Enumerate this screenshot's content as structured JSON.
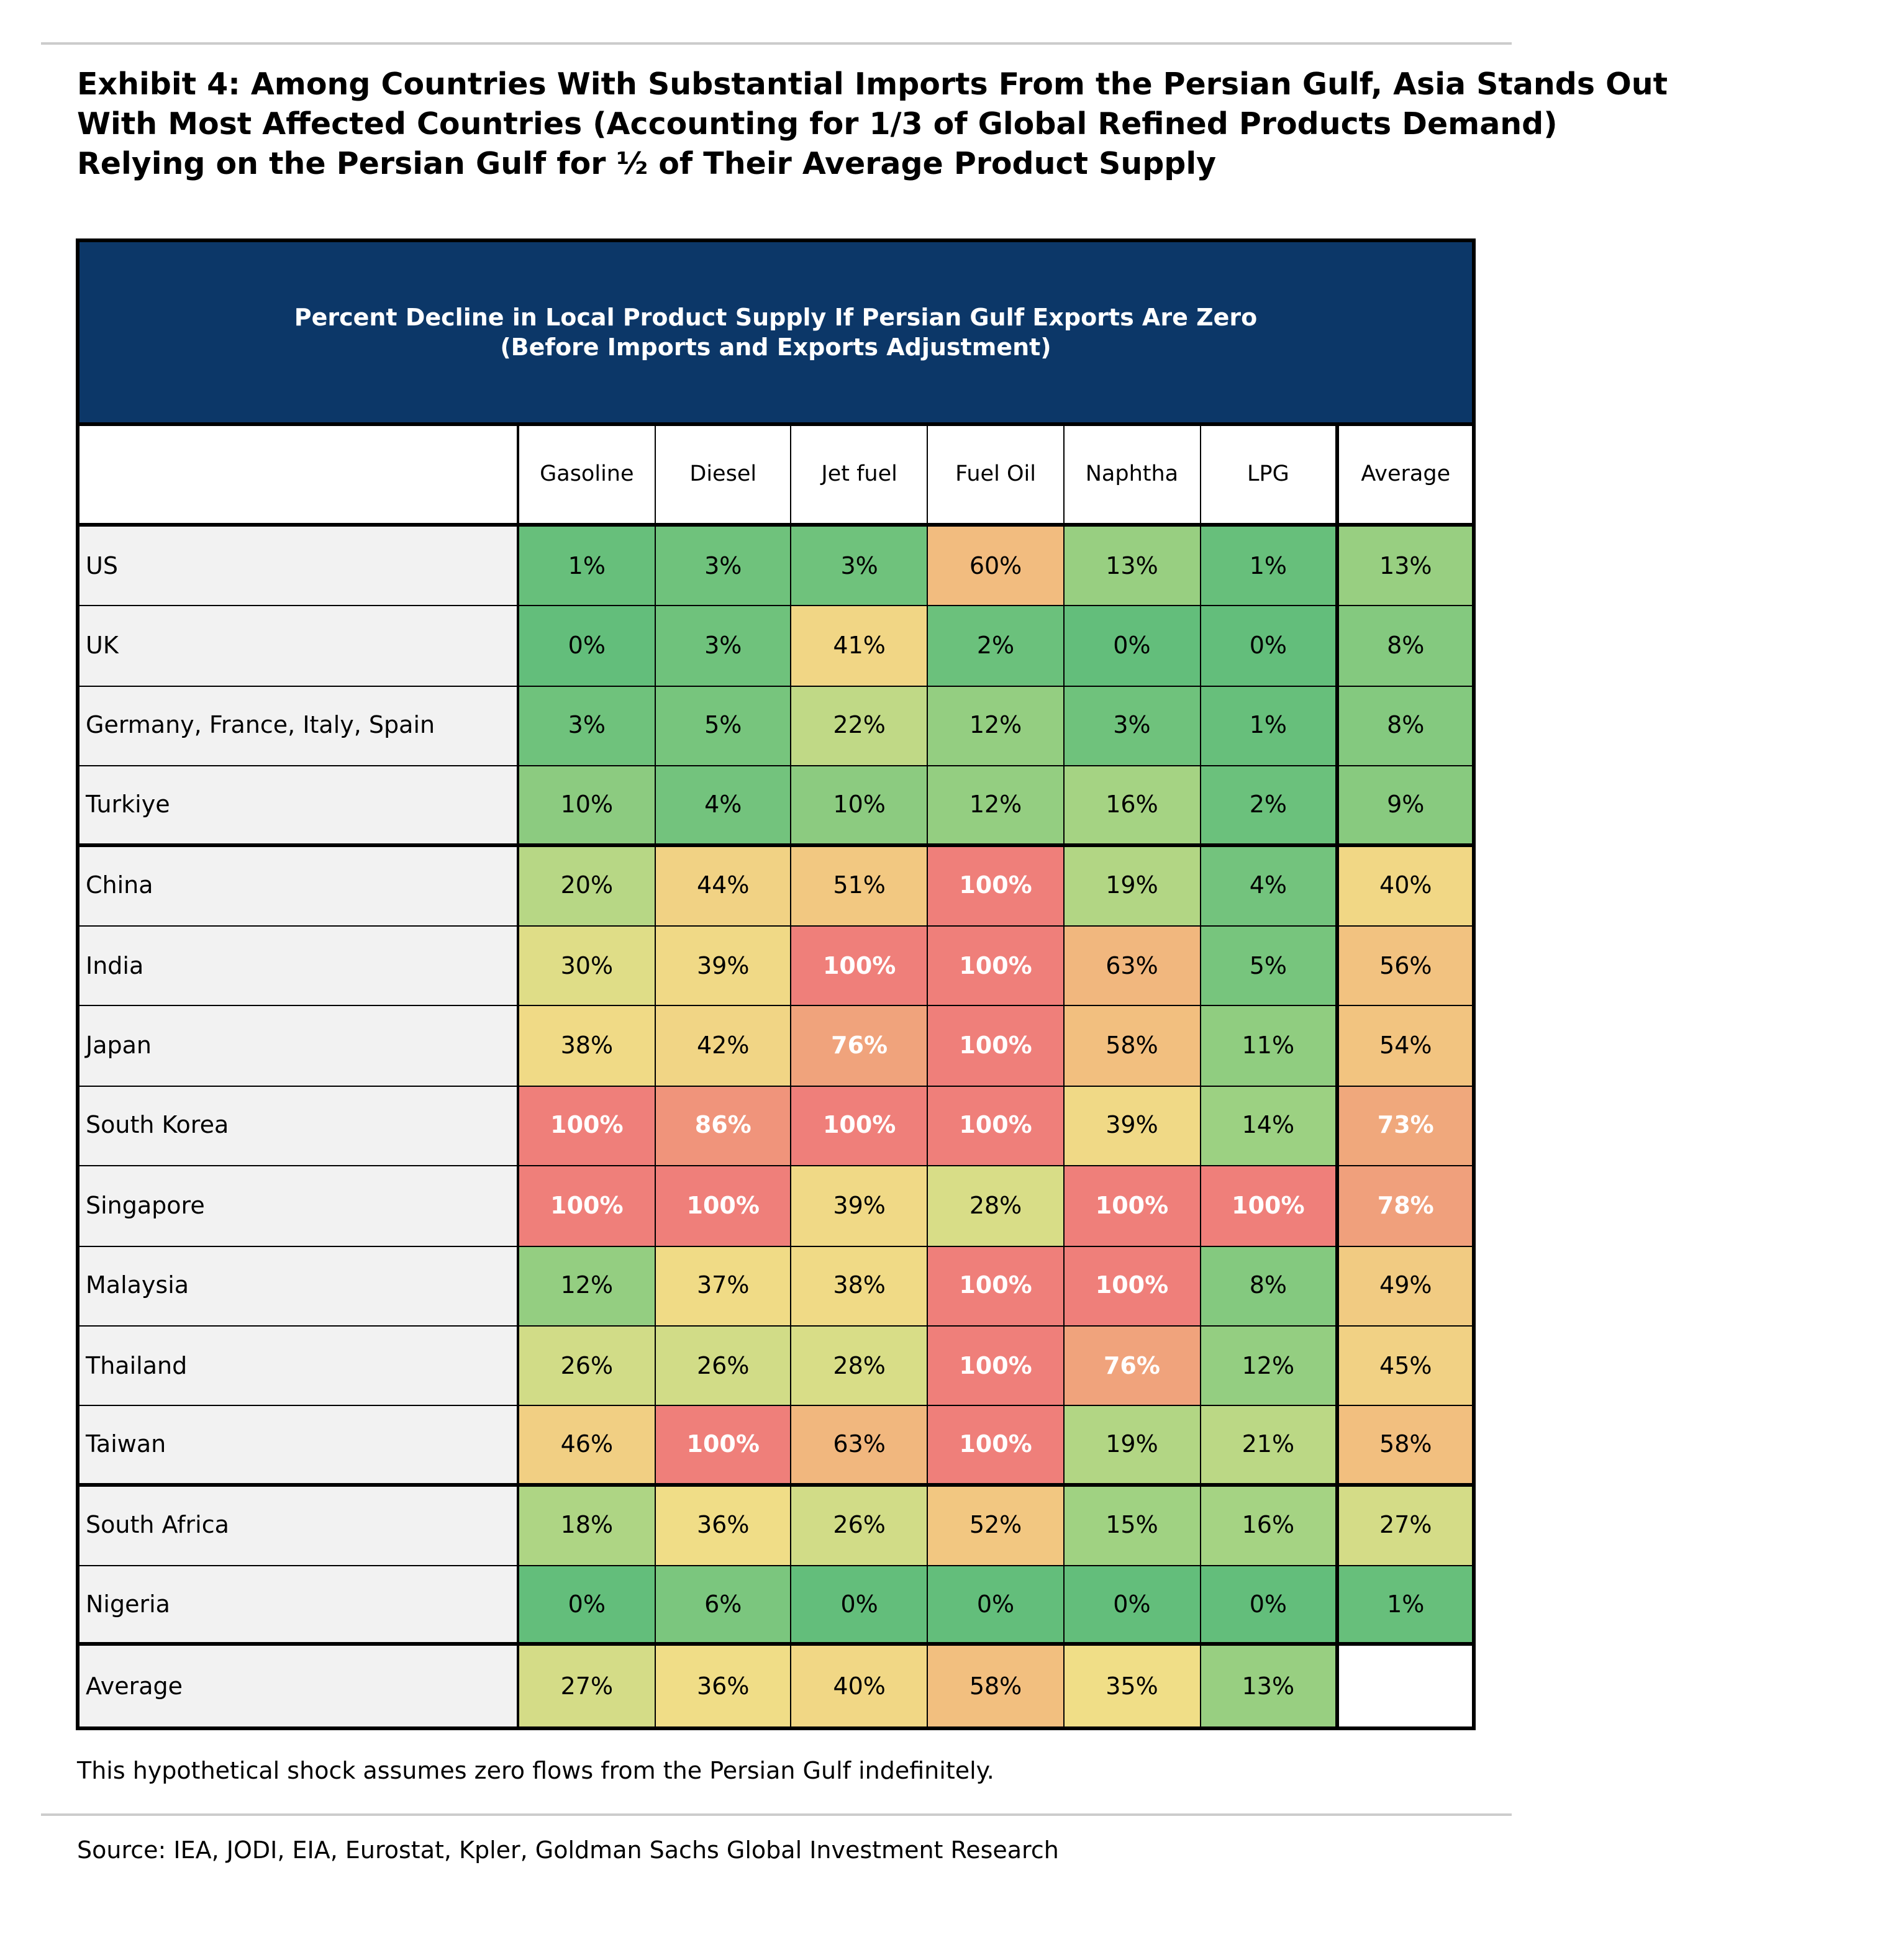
{
  "title": [
    "Exhibit 4: Among Countries With Substantial Imports From the Persian Gulf, Asia Stands Out",
    "With Most Affected Countries (Accounting for 1/3 of Global Refined Products Demand)",
    "Relying on the Persian Gulf for ½ of Their Average Product Supply"
  ],
  "table": {
    "banner": [
      "Percent Decline in Local Product Supply If Persian Gulf Exports Are Zero",
      "(Before Imports and Exports Adjustment)"
    ],
    "columns": [
      "Gasoline",
      "Diesel",
      "Jet fuel",
      "Fuel Oil",
      "Naphtha",
      "LPG",
      "Average"
    ],
    "rows": [
      {
        "label": "US",
        "values": [
          1,
          3,
          3,
          60,
          13,
          1,
          13
        ]
      },
      {
        "label": "UK",
        "values": [
          0,
          3,
          41,
          2,
          0,
          0,
          8
        ]
      },
      {
        "label": "Germany, France, Italy, Spain",
        "values": [
          3,
          5,
          22,
          12,
          3,
          1,
          8
        ]
      },
      {
        "label": "Turkiye",
        "values": [
          10,
          4,
          10,
          12,
          16,
          2,
          9
        ]
      },
      {
        "label": "China",
        "values": [
          20,
          44,
          51,
          100,
          19,
          4,
          40
        ]
      },
      {
        "label": "India",
        "values": [
          30,
          39,
          100,
          100,
          63,
          5,
          56
        ]
      },
      {
        "label": "Japan",
        "values": [
          38,
          42,
          76,
          100,
          58,
          11,
          54
        ]
      },
      {
        "label": "South Korea",
        "values": [
          100,
          86,
          100,
          100,
          39,
          14,
          73
        ]
      },
      {
        "label": "Singapore",
        "values": [
          100,
          100,
          39,
          28,
          100,
          100,
          78
        ]
      },
      {
        "label": "Malaysia",
        "values": [
          12,
          37,
          38,
          100,
          100,
          8,
          49
        ]
      },
      {
        "label": "Thailand",
        "values": [
          26,
          26,
          28,
          100,
          76,
          12,
          45
        ]
      },
      {
        "label": "Taiwan",
        "values": [
          46,
          100,
          63,
          100,
          19,
          21,
          58
        ]
      },
      {
        "label": "South Africa",
        "values": [
          18,
          36,
          26,
          52,
          15,
          16,
          27
        ]
      },
      {
        "label": "Nigeria",
        "values": [
          0,
          6,
          0,
          0,
          0,
          0,
          1
        ]
      },
      {
        "label": "Average",
        "values": [
          27,
          36,
          40,
          58,
          35,
          13,
          null
        ]
      }
    ],
    "group_breaks_after": [
      "Turkiye",
      "Taiwan",
      "Nigeria"
    ]
  },
  "colors": {
    "banner": "#0c3768",
    "low": "#63be7b",
    "mid": "#f0de87",
    "high": "#ef7f7a"
  },
  "note": "This hypothetical shock assumes zero flows from the Persian Gulf indefinitely.",
  "source": "Source: IEA, JODI, EIA, Eurostat, Kpler, Goldman Sachs Global Investment Research"
}
